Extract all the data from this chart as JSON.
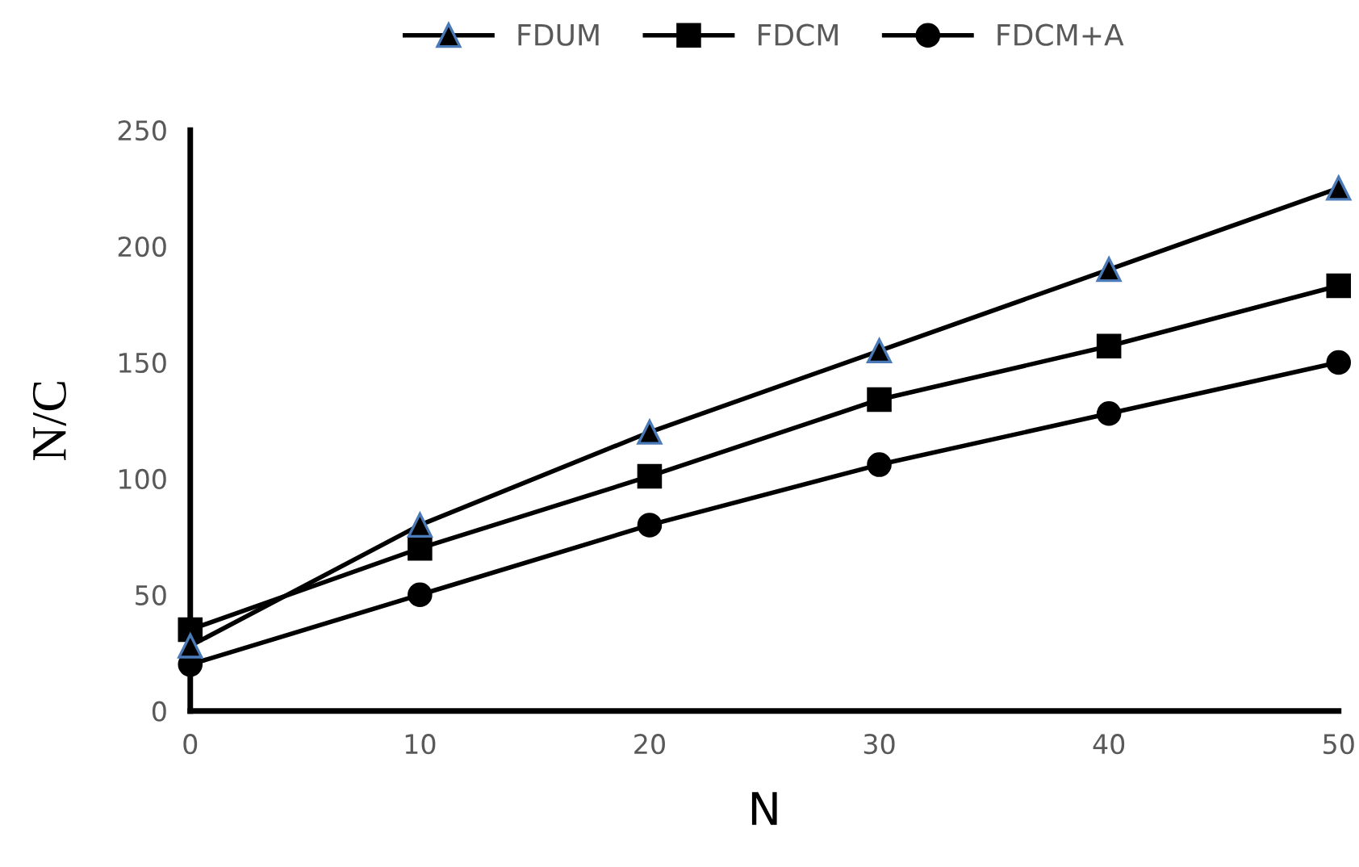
{
  "chart_data": {
    "type": "line",
    "xlabel": "N",
    "ylabel": "N/C",
    "x": [
      0,
      10,
      20,
      30,
      40,
      50
    ],
    "series": [
      {
        "name": "FDUM",
        "color": "#000000",
        "marker": "triangle",
        "values": [
          28,
          80,
          120,
          155,
          190,
          225
        ]
      },
      {
        "name": "FDCM",
        "color": "#000000",
        "marker": "square",
        "values": [
          35,
          70,
          101,
          134,
          157,
          183
        ]
      },
      {
        "name": "FDCM+A",
        "color": "#000000",
        "marker": "circle",
        "values": [
          20,
          50,
          80,
          106,
          128,
          150
        ]
      }
    ],
    "xlim": [
      0,
      50
    ],
    "xticks": [
      0,
      10,
      20,
      30,
      40,
      50
    ],
    "ylim": [
      0,
      250
    ],
    "yticks": [
      0,
      50,
      100,
      150,
      200,
      250
    ],
    "grid": false,
    "legend": "top",
    "line_style": "solid"
  }
}
